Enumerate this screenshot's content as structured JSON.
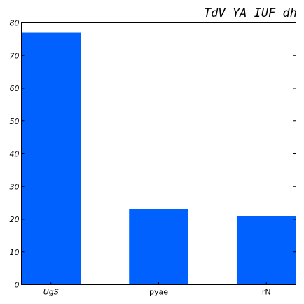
{
  "chart_data": {
    "type": "bar",
    "title": "TdV  YA IUF dh",
    "xlabel": "",
    "ylabel": "",
    "categories": [
      "UgS",
      "pyae",
      "rN"
    ],
    "values": [
      77,
      23,
      21
    ],
    "ylim": [
      0,
      80
    ],
    "yticks": [
      0,
      10,
      20,
      30,
      40,
      50,
      60,
      70,
      80
    ],
    "grid": false,
    "bar_color": "#0061ff"
  }
}
